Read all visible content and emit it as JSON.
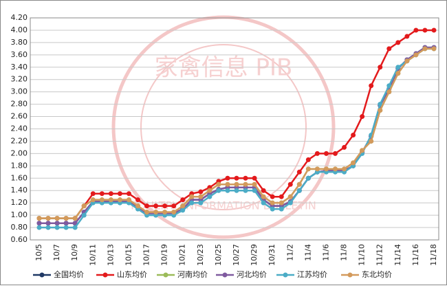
{
  "chart_data": {
    "type": "line",
    "watermark": [
      "家禽信息 PIB",
      "POULTRY INFORMATION BULLETIN"
    ],
    "categories": [
      "10/5",
      null,
      "10/7",
      null,
      "10/9",
      null,
      "10/11",
      null,
      "10/13",
      null,
      "10/15",
      null,
      "10/17",
      null,
      "10/19",
      null,
      "10/21",
      null,
      "10/23",
      null,
      "10/25",
      null,
      "10/27",
      null,
      "10/29",
      null,
      "10/31",
      null,
      "11/2",
      null,
      "11/4",
      null,
      "11/6",
      null,
      "11/8",
      null,
      "11/10",
      null,
      "11/12",
      null,
      "11/14",
      null,
      "11/16",
      null,
      "11/18"
    ],
    "series": [
      {
        "name": "全国均价",
        "color": "#1f3864",
        "values": [
          0.87,
          0.87,
          0.87,
          0.87,
          0.87,
          1.05,
          1.22,
          1.22,
          1.22,
          1.22,
          1.22,
          1.12,
          1.03,
          1.03,
          1.03,
          1.03,
          1.1,
          1.25,
          1.25,
          1.35,
          1.42,
          1.45,
          1.45,
          1.45,
          1.45,
          1.25,
          1.15,
          1.15,
          1.22,
          1.4,
          1.6,
          1.7,
          1.72,
          1.72,
          1.72,
          1.8,
          2.02,
          2.28,
          2.78,
          3.05,
          3.38,
          3.52,
          3.62,
          3.72,
          3.72
        ]
      },
      {
        "name": "山东均价",
        "color": "#e31a1c",
        "values": [
          0.95,
          0.95,
          0.95,
          0.95,
          0.95,
          1.15,
          1.35,
          1.35,
          1.35,
          1.35,
          1.35,
          1.25,
          1.15,
          1.15,
          1.15,
          1.15,
          1.25,
          1.35,
          1.38,
          1.45,
          1.55,
          1.6,
          1.6,
          1.6,
          1.6,
          1.4,
          1.3,
          1.3,
          1.5,
          1.7,
          1.9,
          2.0,
          2.0,
          2.0,
          2.1,
          2.3,
          2.6,
          3.1,
          3.4,
          3.7,
          3.8,
          3.9,
          4.0,
          4.0,
          4.0
        ]
      },
      {
        "name": "河南均价",
        "color": "#9bbb59",
        "values": [
          0.95,
          0.95,
          0.95,
          0.95,
          0.95,
          1.15,
          1.25,
          1.25,
          1.25,
          1.25,
          1.25,
          1.15,
          1.05,
          1.05,
          1.05,
          1.05,
          1.15,
          1.3,
          1.3,
          1.4,
          1.5,
          1.5,
          1.5,
          1.5,
          1.5,
          1.3,
          1.2,
          1.2,
          1.3,
          1.5,
          1.75,
          1.75,
          1.75,
          1.75,
          1.75,
          1.85,
          2.05,
          2.2,
          2.7,
          3.0,
          3.3,
          3.5,
          3.6,
          3.7,
          3.7
        ]
      },
      {
        "name": "河北均价",
        "color": "#7f5a9f",
        "values": [
          0.87,
          0.87,
          0.87,
          0.87,
          0.87,
          1.05,
          1.22,
          1.22,
          1.22,
          1.22,
          1.22,
          1.12,
          1.03,
          1.03,
          1.03,
          1.03,
          1.1,
          1.25,
          1.25,
          1.35,
          1.42,
          1.45,
          1.45,
          1.45,
          1.45,
          1.25,
          1.15,
          1.15,
          1.22,
          1.4,
          1.6,
          1.7,
          1.72,
          1.72,
          1.72,
          1.8,
          2.02,
          2.28,
          2.78,
          3.05,
          3.38,
          3.52,
          3.62,
          3.72,
          3.72
        ]
      },
      {
        "name": "江苏均价",
        "color": "#4bacc6",
        "values": [
          0.8,
          0.8,
          0.8,
          0.8,
          0.8,
          1.0,
          1.2,
          1.2,
          1.2,
          1.2,
          1.2,
          1.1,
          1.0,
          1.0,
          1.0,
          1.0,
          1.08,
          1.2,
          1.2,
          1.3,
          1.4,
          1.4,
          1.4,
          1.4,
          1.4,
          1.2,
          1.1,
          1.1,
          1.2,
          1.4,
          1.6,
          1.7,
          1.7,
          1.7,
          1.7,
          1.8,
          2.0,
          2.3,
          2.8,
          3.1,
          3.4,
          3.5,
          3.6,
          3.7,
          3.7
        ]
      },
      {
        "name": "东北均价",
        "color": "#d39a5c",
        "values": [
          0.95,
          0.95,
          0.95,
          0.95,
          0.95,
          1.15,
          1.25,
          1.25,
          1.25,
          1.25,
          1.25,
          1.15,
          1.05,
          1.05,
          1.05,
          1.05,
          1.15,
          1.3,
          1.3,
          1.4,
          1.5,
          1.5,
          1.5,
          1.5,
          1.5,
          1.3,
          1.2,
          1.2,
          1.3,
          1.5,
          1.75,
          1.75,
          1.75,
          1.75,
          1.75,
          1.85,
          2.05,
          2.2,
          2.7,
          3.0,
          3.3,
          3.5,
          3.6,
          3.7,
          3.7
        ]
      }
    ],
    "ylim": [
      0.6,
      4.2
    ],
    "yticks": [
      {
        "value": 0.6,
        "label": "0.60"
      },
      {
        "value": 0.8,
        "label": "0.80"
      },
      {
        "value": 1.0,
        "label": "1.00"
      },
      {
        "value": 1.2,
        "label": "1.20"
      },
      {
        "value": 1.4,
        "label": "1.40"
      },
      {
        "value": 1.6,
        "label": "1.60"
      },
      {
        "value": 1.8,
        "label": "1.80"
      },
      {
        "value": 2.0,
        "label": "2.00"
      },
      {
        "value": 2.2,
        "label": "2.20"
      },
      {
        "value": 2.4,
        "label": "2.40"
      },
      {
        "value": 2.6,
        "label": "2.60"
      },
      {
        "value": 2.8,
        "label": "2.80"
      },
      {
        "value": 3.0,
        "label": "3.00"
      },
      {
        "value": 3.2,
        "label": "3.20"
      },
      {
        "value": 3.4,
        "label": "3.40"
      },
      {
        "value": 3.6,
        "label": "3.60"
      },
      {
        "value": 3.8,
        "label": "3.80"
      },
      {
        "value": 4.0,
        "label": "4.00"
      },
      {
        "value": 4.2,
        "label": "4.20"
      }
    ],
    "grid": true,
    "legend": "bottom"
  }
}
